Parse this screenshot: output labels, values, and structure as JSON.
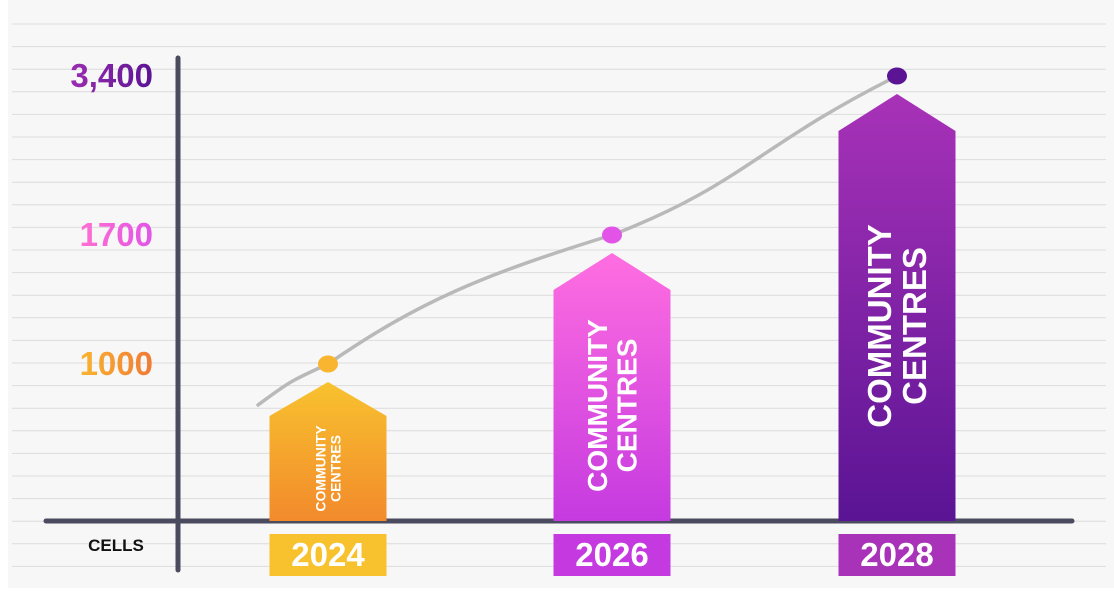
{
  "chart_data": {
    "type": "bar",
    "categories": [
      "2024",
      "2026",
      "2028"
    ],
    "series": [
      {
        "values": [
          1000,
          1700,
          3400
        ]
      }
    ],
    "bar_labels": [
      "COMMUNITY CENTRES",
      "COMMUNITY CENTRES",
      "COMMUNITY CENTRES"
    ],
    "y_tick_labels": [
      {
        "value": 3400,
        "label": "3,400"
      },
      {
        "value": 1700,
        "label": "1700"
      },
      {
        "value": 1000,
        "label": "1000"
      }
    ],
    "xlabel": "CELLS",
    "ylim": [
      0,
      4000
    ],
    "grid": true,
    "trend_line": true,
    "colors": {
      "bar_2024": [
        "#f8c22e",
        "#f28a2c"
      ],
      "bar_2026": [
        "#ff6ee0",
        "#c53ae0"
      ],
      "bar_2028": [
        "#a832b8",
        "#5a1494"
      ],
      "tick_1000": [
        "#f9b52f",
        "#f07a36"
      ],
      "tick_1700": [
        "#ff6fd0",
        "#e254e8"
      ],
      "tick_3400": [
        "#9b2db0",
        "#5a1494"
      ],
      "axis": "#4a4b5e",
      "grid": "#dcdcdc",
      "trend": "#b9b9b9",
      "background": "#f7f7f7"
    }
  }
}
